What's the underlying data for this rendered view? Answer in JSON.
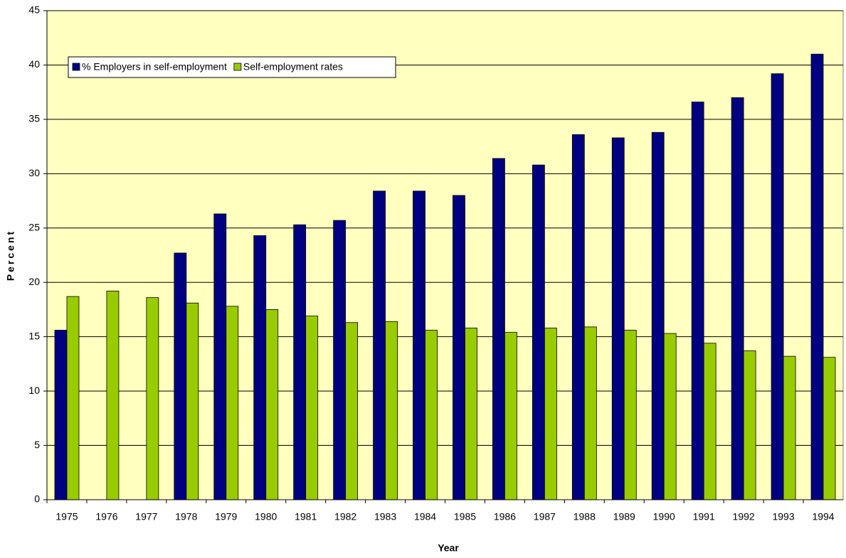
{
  "chart_data": {
    "type": "bar",
    "x_label": "Year",
    "y_label": "Percent",
    "categories": [
      "1975",
      "1976",
      "1977",
      "1978",
      "1979",
      "1980",
      "1981",
      "1982",
      "1983",
      "1984",
      "1985",
      "1986",
      "1987",
      "1988",
      "1989",
      "1990",
      "1991",
      "1992",
      "1993",
      "1994"
    ],
    "series": [
      {
        "name": "% Employers in self-employment",
        "color": "#000080",
        "values": [
          15.6,
          null,
          null,
          22.7,
          26.3,
          24.3,
          25.3,
          25.7,
          28.4,
          28.4,
          28.0,
          31.4,
          30.8,
          33.6,
          33.3,
          33.8,
          36.6,
          37.0,
          39.2,
          41.0
        ]
      },
      {
        "name": "Self-employment rates",
        "color": "#99cc00",
        "values": [
          18.7,
          19.2,
          18.6,
          18.1,
          17.8,
          17.5,
          16.9,
          16.3,
          16.4,
          15.6,
          15.8,
          15.4,
          15.8,
          15.9,
          15.6,
          15.3,
          14.4,
          13.7,
          13.2,
          13.1
        ]
      }
    ],
    "ylim": [
      0,
      45
    ],
    "yticks": [
      0,
      5,
      10,
      15,
      20,
      25,
      30,
      35,
      40,
      45
    ],
    "grid": true,
    "background": "#ffffc0",
    "legend": "top-left"
  }
}
